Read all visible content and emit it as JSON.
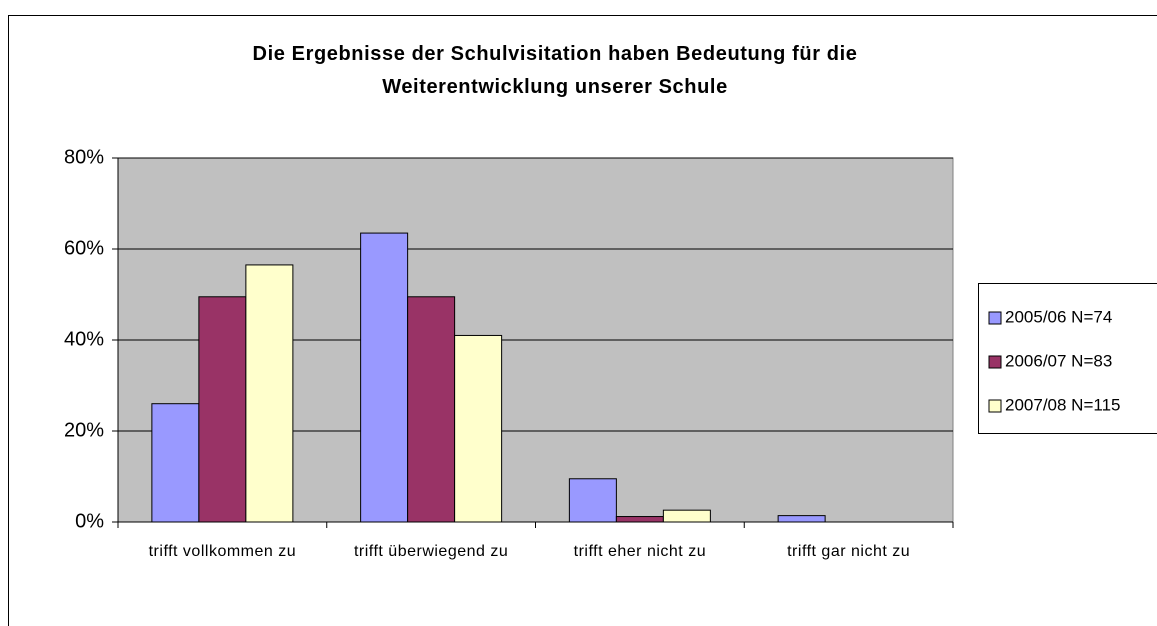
{
  "chart_data": {
    "type": "bar",
    "title": "Die Ergebnisse der Schulvisitation haben Bedeutung für die Weiterentwicklung unserer Schule",
    "categories": [
      "trifft vollkommen zu",
      "trifft überwiegend zu",
      "trifft eher nicht zu",
      "trifft gar nicht zu"
    ],
    "series": [
      {
        "name": "2005/06 N=74",
        "color": "#9999ff",
        "values": [
          26,
          63.5,
          9.5,
          1.4
        ]
      },
      {
        "name": "2006/07 N=83",
        "color": "#993366",
        "values": [
          49.5,
          49.5,
          1.2,
          0
        ]
      },
      {
        "name": "2007/08 N=115",
        "color": "#ffffcc",
        "values": [
          56.5,
          41,
          2.6,
          0
        ]
      }
    ],
    "ylim": [
      0,
      80
    ],
    "yticks": [
      {
        "value": 0,
        "label": "0%"
      },
      {
        "value": 20,
        "label": "20%"
      },
      {
        "value": 40,
        "label": "40%"
      },
      {
        "value": 60,
        "label": "60%"
      },
      {
        "value": 80,
        "label": "80%"
      }
    ],
    "grid": true,
    "legend": "right"
  }
}
